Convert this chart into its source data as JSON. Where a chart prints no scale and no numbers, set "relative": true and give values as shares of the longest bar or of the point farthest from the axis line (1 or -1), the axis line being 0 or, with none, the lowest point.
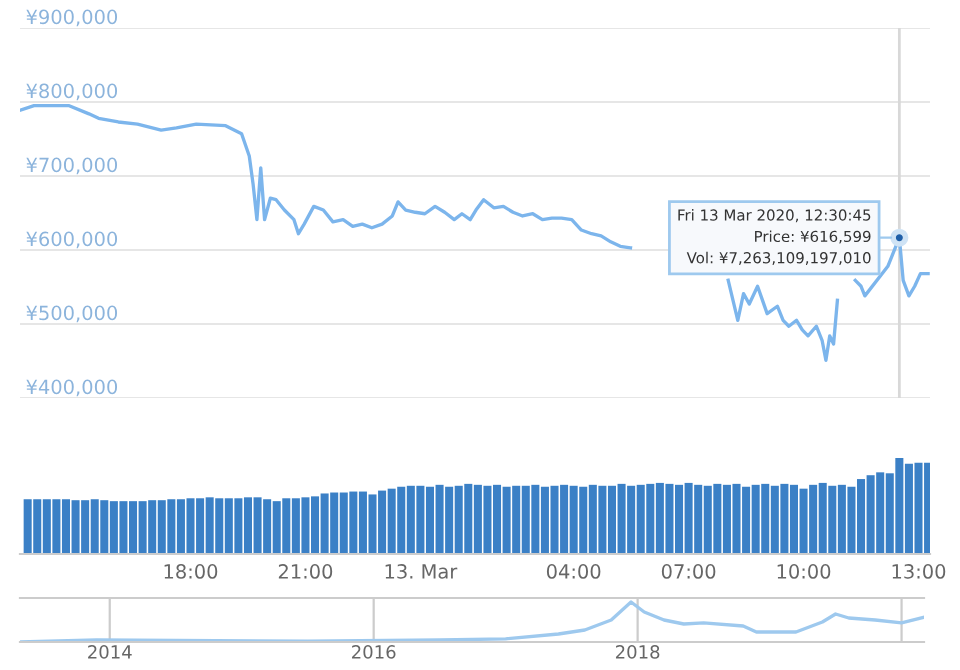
{
  "chart_data": [
    {
      "type": "line",
      "x": [
        "2020-03-12T13:34",
        "2020-03-12T13:55",
        "2020-03-12T14:50",
        "2020-03-12T15:21",
        "2020-03-12T15:36",
        "2020-03-12T16:07",
        "2020-03-12T16:37",
        "2020-03-12T17:14",
        "2020-03-12T17:38",
        "2020-03-12T18:09",
        "2020-03-12T18:55",
        "2020-03-12T19:20",
        "2020-03-12T19:32",
        "2020-03-12T19:38",
        "2020-03-12T19:44",
        "2020-03-12T19:50",
        "2020-03-12T19:56",
        "2020-03-12T20:05",
        "2020-03-12T20:14",
        "2020-03-12T20:27",
        "2020-03-12T20:42",
        "2020-03-12T20:49",
        "2020-03-12T20:58",
        "2020-03-12T21:13",
        "2020-03-12T21:28",
        "2020-03-12T21:43",
        "2020-03-12T21:59",
        "2020-03-12T22:14",
        "2020-03-12T22:29",
        "2020-03-12T22:44",
        "2020-03-12T23:00",
        "2020-03-12T23:16",
        "2020-03-12T23:25",
        "2020-03-12T23:37",
        "2020-03-12T23:52",
        "2020-03-13T00:07",
        "2020-03-13T00:23",
        "2020-03-13T00:38",
        "2020-03-13T00:53",
        "2020-03-13T01:05",
        "2020-03-13T01:18",
        "2020-03-13T01:27",
        "2020-03-13T01:39",
        "2020-03-13T01:55",
        "2020-03-13T02:10",
        "2020-03-13T02:25",
        "2020-03-13T02:40",
        "2020-03-13T02:56",
        "2020-03-13T03:11",
        "2020-03-13T03:26",
        "2020-03-13T03:41",
        "2020-03-13T03:57",
        "2020-03-13T04:12",
        "2020-03-13T04:28",
        "2020-03-13T04:43",
        "2020-03-13T04:58",
        "2020-03-13T05:13",
        "2020-03-13T05:29",
        "2020-03-13T05:53",
        "2020-03-13T08:02",
        "2020-03-13T08:17",
        "2020-03-13T08:26",
        "2020-03-13T08:35",
        "2020-03-13T08:48",
        "2020-03-13T09:03",
        "2020-03-13T09:19",
        "2020-03-13T09:28",
        "2020-03-13T09:37",
        "2020-03-13T09:49",
        "2020-03-13T09:58",
        "2020-03-13T10:07",
        "2020-03-13T10:20",
        "2020-03-13T10:29",
        "2020-03-13T10:35",
        "2020-03-13T10:41",
        "2020-03-13T10:47",
        "2020-03-13T10:53",
        "2020-03-13T11:05",
        "2020-03-13T11:11",
        "2020-03-13T11:21",
        "2020-03-13T11:30",
        "2020-03-13T11:36",
        "2020-03-13T12:12",
        "2020-03-13T12:30",
        "2020-03-13T12:36",
        "2020-03-13T12:45",
        "2020-03-13T12:54",
        "2020-03-13T13:03",
        "2020-03-13T13:15"
      ],
      "series": [
        {
          "color": "#7cb5ec",
          "values": [
            789000,
            795000,
            795000,
            784000,
            778000,
            773000,
            770000,
            762000,
            765000,
            770000,
            768000,
            757000,
            727000,
            689000,
            641000,
            711000,
            641000,
            670000,
            668000,
            654000,
            641000,
            622000,
            635000,
            659000,
            654000,
            638000,
            641000,
            632000,
            635000,
            630000,
            635000,
            646000,
            665000,
            654000,
            651000,
            649000,
            659000,
            651000,
            641000,
            649000,
            641000,
            654000,
            668000,
            657000,
            659000,
            651000,
            646000,
            649000,
            641000,
            643000,
            643000,
            641000,
            627000,
            622000,
            619000,
            611000,
            605000,
            603000,
            null,
            559000,
            505000,
            541000,
            527000,
            551000,
            514000,
            524000,
            505000,
            497000,
            505000,
            492000,
            484000,
            497000,
            478000,
            451000,
            484000,
            473000,
            532000,
            null,
            null,
            559000,
            551000,
            538000,
            578000,
            616599,
            559000,
            538000,
            551000,
            568000,
            568000
          ]
        }
      ],
      "xlim": [
        "2020-03-12T13:33",
        "2020-03-13T13:18"
      ],
      "ylim": [
        400000,
        900000
      ],
      "yticks": [
        {
          "value": 400000,
          "label": "¥400,000"
        },
        {
          "value": 500000,
          "label": "¥500,000"
        },
        {
          "value": 600000,
          "label": "¥600,000"
        },
        {
          "value": 700000,
          "label": "¥700,000"
        },
        {
          "value": 800000,
          "label": "¥800,000"
        },
        {
          "value": 900000,
          "label": "¥900,000"
        }
      ],
      "grid": "y",
      "tick_labels": "y",
      "marker": "none",
      "line_style": "solid",
      "ref_lines": [
        {
          "axis": "x",
          "value": "2020-03-13T12:30",
          "color": "#d8d8d8"
        }
      ],
      "annotations": [
        {
          "text": "Fri 13 Mar 2020, 12:30:45\nPrice: ¥616,599\nVol: ¥7,263,109,197,010",
          "x": "2020-03-13T12:30",
          "y": 616599
        }
      ]
    },
    {
      "type": "bar",
      "relative": true,
      "xlim": [
        "2020-03-12T13:33",
        "2020-03-13T13:18"
      ],
      "x": [
        "2020-03-12T13:45",
        "2020-03-12T14:00",
        "2020-03-12T14:15",
        "2020-03-12T14:30",
        "2020-03-12T14:45",
        "2020-03-12T15:00",
        "2020-03-12T15:15",
        "2020-03-12T15:30",
        "2020-03-12T15:45",
        "2020-03-12T16:00",
        "2020-03-12T16:15",
        "2020-03-12T16:30",
        "2020-03-12T16:45",
        "2020-03-12T17:00",
        "2020-03-12T17:15",
        "2020-03-12T17:30",
        "2020-03-12T17:45",
        "2020-03-12T18:00",
        "2020-03-12T18:15",
        "2020-03-12T18:30",
        "2020-03-12T18:45",
        "2020-03-12T19:00",
        "2020-03-12T19:15",
        "2020-03-12T19:30",
        "2020-03-12T19:45",
        "2020-03-12T20:00",
        "2020-03-12T20:15",
        "2020-03-12T20:30",
        "2020-03-12T20:45",
        "2020-03-12T21:00",
        "2020-03-12T21:15",
        "2020-03-12T21:30",
        "2020-03-12T21:45",
        "2020-03-12T22:00",
        "2020-03-12T22:15",
        "2020-03-12T22:30",
        "2020-03-12T22:45",
        "2020-03-12T23:00",
        "2020-03-12T23:15",
        "2020-03-12T23:30",
        "2020-03-12T23:45",
        "2020-03-13T00:00",
        "2020-03-13T00:15",
        "2020-03-13T00:30",
        "2020-03-13T00:45",
        "2020-03-13T01:00",
        "2020-03-13T01:15",
        "2020-03-13T01:30",
        "2020-03-13T01:45",
        "2020-03-13T02:00",
        "2020-03-13T02:15",
        "2020-03-13T02:30",
        "2020-03-13T02:45",
        "2020-03-13T03:00",
        "2020-03-13T03:15",
        "2020-03-13T03:30",
        "2020-03-13T03:45",
        "2020-03-13T04:00",
        "2020-03-13T04:15",
        "2020-03-13T04:30",
        "2020-03-13T04:45",
        "2020-03-13T05:00",
        "2020-03-13T05:15",
        "2020-03-13T05:30",
        "2020-03-13T05:45",
        "2020-03-13T06:00",
        "2020-03-13T06:15",
        "2020-03-13T06:30",
        "2020-03-13T06:45",
        "2020-03-13T07:00",
        "2020-03-13T07:15",
        "2020-03-13T07:30",
        "2020-03-13T07:45",
        "2020-03-13T08:00",
        "2020-03-13T08:15",
        "2020-03-13T08:30",
        "2020-03-13T08:45",
        "2020-03-13T09:00",
        "2020-03-13T09:15",
        "2020-03-13T09:30",
        "2020-03-13T09:45",
        "2020-03-13T10:00",
        "2020-03-13T10:15",
        "2020-03-13T10:30",
        "2020-03-13T10:45",
        "2020-03-13T11:00",
        "2020-03-13T11:15",
        "2020-03-13T11:30",
        "2020-03-13T11:45",
        "2020-03-13T12:00",
        "2020-03-13T12:15",
        "2020-03-13T12:30",
        "2020-03-13T12:45",
        "2020-03-13T13:00",
        "2020-03-13T13:15"
      ],
      "series": [
        {
          "color": "#3b80c6",
          "values": [
            0.57,
            0.57,
            0.57,
            0.57,
            0.57,
            0.56,
            0.56,
            0.57,
            0.56,
            0.55,
            0.55,
            0.55,
            0.55,
            0.56,
            0.56,
            0.57,
            0.57,
            0.58,
            0.58,
            0.59,
            0.58,
            0.58,
            0.58,
            0.59,
            0.59,
            0.57,
            0.55,
            0.58,
            0.58,
            0.59,
            0.6,
            0.63,
            0.64,
            0.64,
            0.65,
            0.65,
            0.62,
            0.66,
            0.68,
            0.7,
            0.71,
            0.71,
            0.7,
            0.72,
            0.7,
            0.71,
            0.73,
            0.72,
            0.71,
            0.72,
            0.7,
            0.71,
            0.71,
            0.72,
            0.7,
            0.71,
            0.72,
            0.71,
            0.7,
            0.72,
            0.71,
            0.71,
            0.73,
            0.71,
            0.72,
            0.73,
            0.74,
            0.73,
            0.72,
            0.74,
            0.72,
            0.71,
            0.73,
            0.72,
            0.73,
            0.7,
            0.72,
            0.73,
            0.71,
            0.73,
            0.72,
            0.68,
            0.72,
            0.74,
            0.71,
            0.72,
            0.7,
            0.78,
            0.82,
            0.85,
            0.84,
            1.0,
            0.94,
            0.95,
            0.95
          ]
        }
      ],
      "xticks": [
        {
          "value": "2020-03-12T18:00",
          "label": "18:00"
        },
        {
          "value": "2020-03-12T21:00",
          "label": "21:00"
        },
        {
          "value": "2020-03-13T00:00",
          "label": "13. Mar"
        },
        {
          "value": "2020-03-13T04:00",
          "label": "04:00"
        },
        {
          "value": "2020-03-13T07:00",
          "label": "07:00"
        },
        {
          "value": "2020-03-13T10:00",
          "label": "10:00"
        },
        {
          "value": "2020-03-13T13:00",
          "label": "13:00"
        }
      ],
      "tick_labels": "x"
    },
    {
      "type": "line",
      "relative": true,
      "xlim": [
        2013.32,
        2020.17
      ],
      "x": [
        2013.32,
        2013.9,
        2014.5,
        2015.5,
        2016.5,
        2017.0,
        2017.4,
        2017.6,
        2017.8,
        2017.95,
        2018.05,
        2018.2,
        2018.35,
        2018.5,
        2018.8,
        2018.9,
        2019.2,
        2019.4,
        2019.5,
        2019.6,
        2019.8,
        2020.0,
        2020.17
      ],
      "series": [
        {
          "color": "#9ec9ee",
          "values": [
            0,
            0.05,
            0.04,
            0.02,
            0.05,
            0.08,
            0.2,
            0.3,
            0.55,
            1.0,
            0.75,
            0.55,
            0.45,
            0.48,
            0.4,
            0.25,
            0.25,
            0.5,
            0.7,
            0.6,
            0.55,
            0.48,
            0.62
          ]
        }
      ],
      "xticks": [
        2014,
        2016,
        2018,
        {
          "value": 2020,
          "label": null
        }
      ],
      "grid": "x",
      "tick_labels": "x"
    }
  ]
}
